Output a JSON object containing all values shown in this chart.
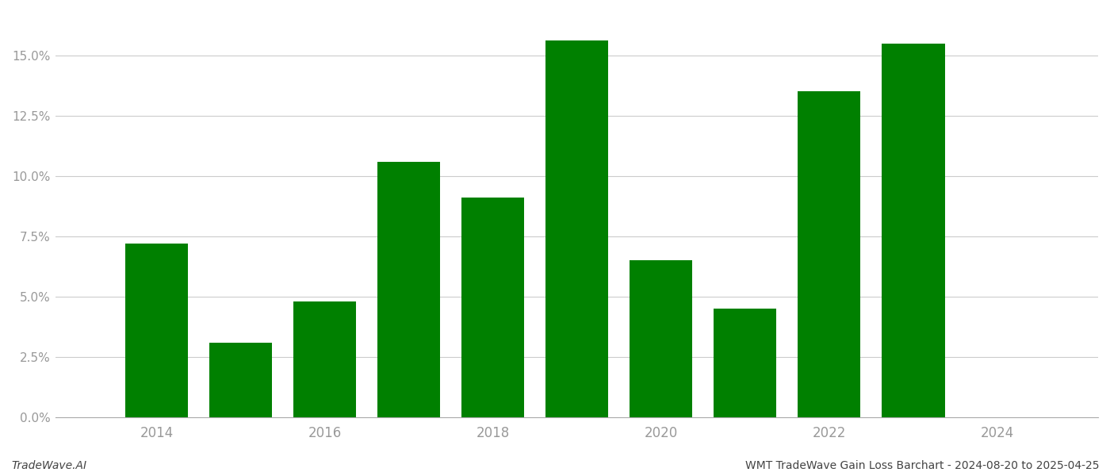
{
  "years": [
    2014,
    2015,
    2016,
    2017,
    2018,
    2019,
    2020,
    2021,
    2022,
    2023
  ],
  "values": [
    0.072,
    0.031,
    0.048,
    0.106,
    0.091,
    0.156,
    0.065,
    0.045,
    0.135,
    0.155
  ],
  "bar_color": "#008000",
  "background_color": "#ffffff",
  "grid_color": "#cccccc",
  "axis_color": "#aaaaaa",
  "tick_color": "#999999",
  "footer_left": "TradeWave.AI",
  "footer_right": "WMT TradeWave Gain Loss Barchart - 2024-08-20 to 2025-04-25",
  "ylim": [
    0,
    0.168
  ],
  "yticks": [
    0.0,
    0.025,
    0.05,
    0.075,
    0.1,
    0.125,
    0.15
  ],
  "xtick_labels": [
    "2014",
    "2016",
    "2018",
    "2020",
    "2022",
    "2024"
  ],
  "xtick_positions": [
    2014,
    2016,
    2018,
    2020,
    2022,
    2024
  ],
  "xlim": [
    2012.8,
    2025.2
  ],
  "bar_width": 0.75
}
